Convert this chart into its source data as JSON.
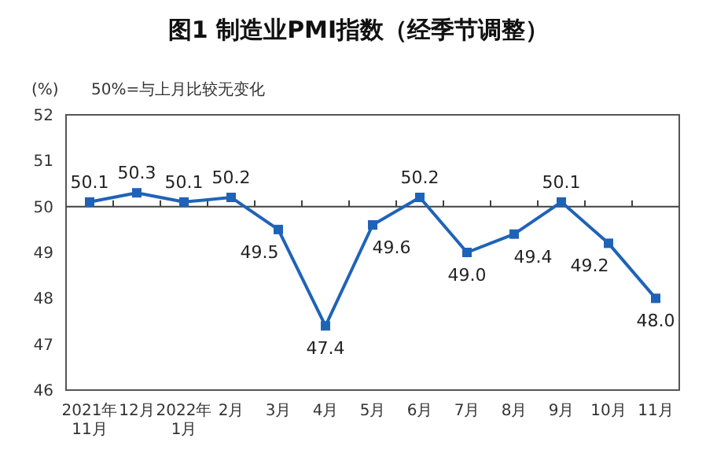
{
  "chart_data": {
    "type": "line",
    "title": "图1 制造业PMI指数（经季节调整）",
    "ylabel": "(%)",
    "annotations": [
      "50%=与上月比较无变化"
    ],
    "categories": [
      "2021年\n11月",
      "12月",
      "2022年\n1月",
      "2月",
      "3月",
      "4月",
      "5月",
      "6月",
      "7月",
      "8月",
      "9月",
      "10月",
      "11月"
    ],
    "series": [
      {
        "color": "#1f63b8",
        "values": [
          50.1,
          50.3,
          50.1,
          50.2,
          49.5,
          47.4,
          49.6,
          50.2,
          49.0,
          49.4,
          50.1,
          49.2,
          48.0
        ],
        "value_labels": [
          "50.1",
          "50.3",
          "50.1",
          "50.2",
          "49.5",
          "47.4",
          "49.6",
          "50.2",
          "49.0",
          "49.4",
          "50.1",
          "49.2",
          "48.0"
        ]
      }
    ],
    "ylim": [
      46,
      52
    ],
    "yticks": [
      46,
      47,
      48,
      49,
      50,
      51,
      52
    ],
    "ref_lines": [
      {
        "axis": "y",
        "value": 50,
        "color": "#404040"
      }
    ],
    "marker": "square",
    "line_style": "solid",
    "grid": false
  }
}
